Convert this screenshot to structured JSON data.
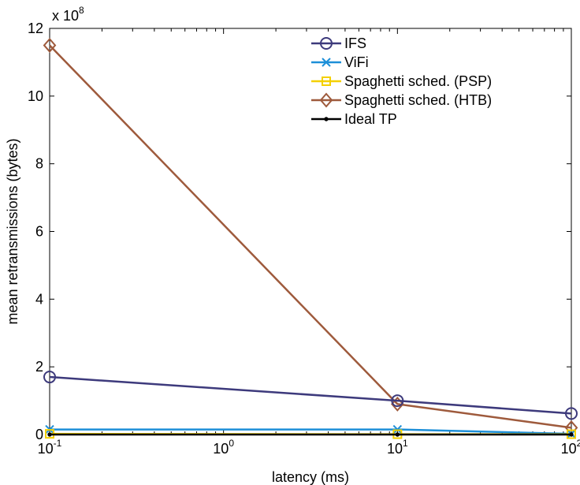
{
  "chart_data": {
    "type": "line",
    "xlabel": "latency (ms)",
    "ylabel": "mean retransmissions (bytes)",
    "x_scale": "log",
    "xlim": [
      0.1,
      100
    ],
    "ylim": [
      0,
      1200000000
    ],
    "y_multiplier_label": {
      "base": "x 10",
      "exp": "8"
    },
    "x_ticks": [
      {
        "value": 0.1,
        "base": "10",
        "exp": "-1"
      },
      {
        "value": 1,
        "base": "10",
        "exp": "0"
      },
      {
        "value": 10,
        "base": "10",
        "exp": "1"
      },
      {
        "value": 100,
        "base": "10",
        "exp": "2"
      }
    ],
    "y_ticks": [
      {
        "value": 0,
        "label": "0"
      },
      {
        "value": 200000000,
        "label": "2"
      },
      {
        "value": 400000000,
        "label": "4"
      },
      {
        "value": 600000000,
        "label": "6"
      },
      {
        "value": 800000000,
        "label": "8"
      },
      {
        "value": 1000000000,
        "label": "10"
      },
      {
        "value": 1200000000,
        "label": "12"
      }
    ],
    "x": [
      0.1,
      10,
      100
    ],
    "series": [
      {
        "name": "IFS",
        "color": "#3d3a7c",
        "marker": "circle",
        "values": [
          170000000,
          100000000,
          62000000
        ]
      },
      {
        "name": "ViFi",
        "color": "#1d8fd8",
        "marker": "x",
        "values": [
          15000000,
          15000000,
          2000000
        ]
      },
      {
        "name": "Spaghetti sched. (PSP)",
        "color": "#f4d000",
        "marker": "square",
        "values": [
          2000000,
          1000000,
          1000000
        ]
      },
      {
        "name": "Spaghetti sched. (HTB)",
        "color": "#9e5a3c",
        "marker": "diamond",
        "values": [
          1150000000,
          90000000,
          20000000
        ]
      },
      {
        "name": "Ideal TP",
        "color": "#000000",
        "marker": "dot",
        "values": [
          0,
          0,
          0
        ]
      }
    ],
    "legend_position": "top-right",
    "grid": false
  }
}
